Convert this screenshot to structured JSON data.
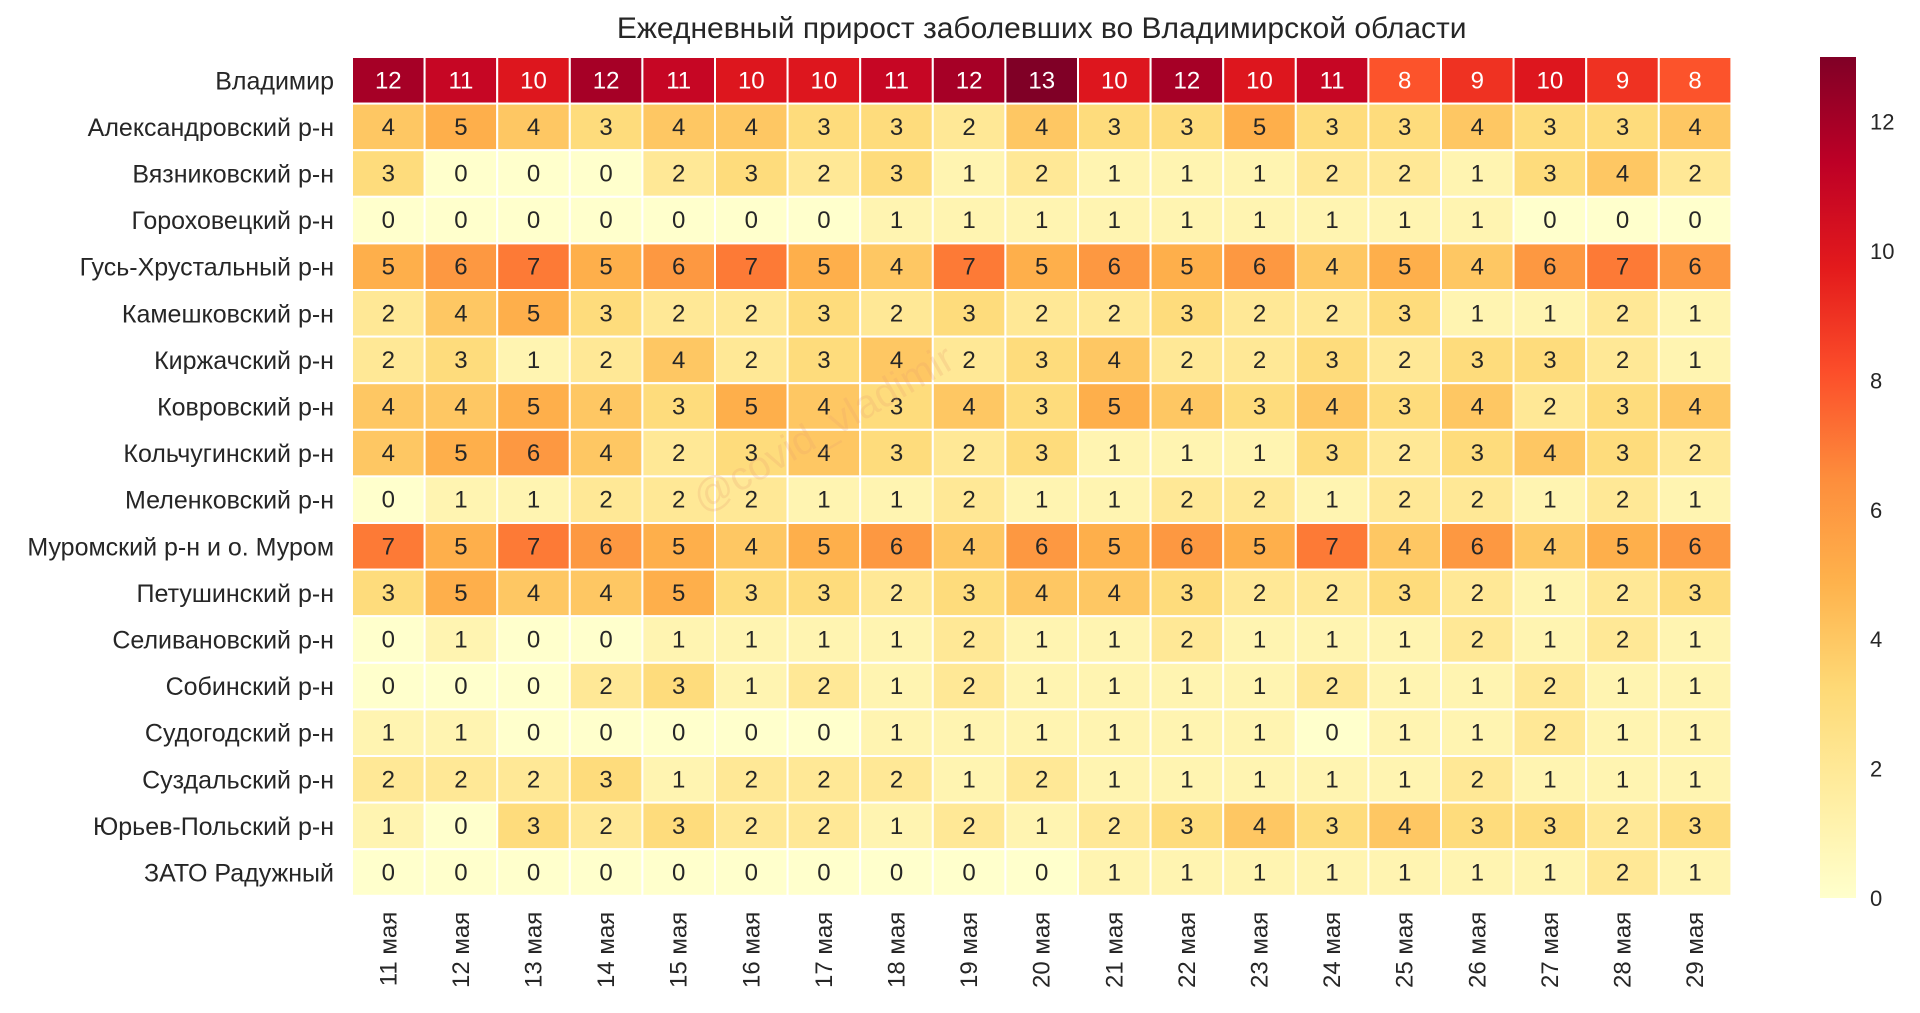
{
  "chart_data": {
    "type": "heatmap",
    "title": "Ежедневный прирост заболевших во Владимирской области",
    "rows": [
      "Владимир",
      "Александровский р-н",
      "Вязниковский р-н",
      "Гороховецкий р-н",
      "Гусь-Хрустальный р-н",
      "Камешковский р-н",
      "Киржачский р-н",
      "Ковровский р-н",
      "Кольчугинский р-н",
      "Меленковский р-н",
      "Муромский р-н и о. Муром",
      "Петушинский р-н",
      "Селивановский р-н",
      "Собинский р-н",
      "Судогодский р-н",
      "Суздальский р-н",
      "Юрьев-Польский р-н",
      "ЗАТО Радужный"
    ],
    "columns": [
      "11 мая",
      "12 мая",
      "13 мая",
      "14 мая",
      "15 мая",
      "16 мая",
      "17 мая",
      "18 мая",
      "19 мая",
      "20 мая",
      "21 мая",
      "22 мая",
      "23 мая",
      "24 мая",
      "25 мая",
      "26 мая",
      "27 мая",
      "28 мая",
      "29 мая"
    ],
    "values": [
      [
        12,
        11,
        10,
        12,
        11,
        10,
        10,
        11,
        12,
        13,
        10,
        12,
        10,
        11,
        8,
        9,
        10,
        9,
        8
      ],
      [
        4,
        5,
        4,
        3,
        4,
        4,
        3,
        3,
        2,
        4,
        3,
        3,
        5,
        3,
        3,
        4,
        3,
        3,
        4
      ],
      [
        3,
        0,
        0,
        0,
        2,
        3,
        2,
        3,
        1,
        2,
        1,
        1,
        1,
        2,
        2,
        1,
        3,
        4,
        2
      ],
      [
        0,
        0,
        0,
        0,
        0,
        0,
        0,
        1,
        1,
        1,
        1,
        1,
        1,
        1,
        1,
        1,
        0,
        0,
        0
      ],
      [
        5,
        6,
        7,
        5,
        6,
        7,
        5,
        4,
        7,
        5,
        6,
        5,
        6,
        4,
        5,
        4,
        6,
        7,
        6
      ],
      [
        2,
        4,
        5,
        3,
        2,
        2,
        3,
        2,
        3,
        2,
        2,
        3,
        2,
        2,
        3,
        1,
        1,
        2,
        1
      ],
      [
        2,
        3,
        1,
        2,
        4,
        2,
        3,
        4,
        2,
        3,
        4,
        2,
        2,
        3,
        2,
        3,
        3,
        2,
        1
      ],
      [
        4,
        4,
        5,
        4,
        3,
        5,
        4,
        3,
        4,
        3,
        5,
        4,
        3,
        4,
        3,
        4,
        2,
        3,
        4
      ],
      [
        4,
        5,
        6,
        4,
        2,
        3,
        4,
        3,
        2,
        3,
        1,
        1,
        1,
        3,
        2,
        3,
        4,
        3,
        2
      ],
      [
        0,
        1,
        1,
        2,
        2,
        2,
        1,
        1,
        2,
        1,
        1,
        2,
        2,
        1,
        2,
        2,
        1,
        2,
        1
      ],
      [
        7,
        5,
        7,
        6,
        5,
        4,
        5,
        6,
        4,
        6,
        5,
        6,
        5,
        7,
        4,
        6,
        4,
        5,
        6
      ],
      [
        3,
        5,
        4,
        4,
        5,
        3,
        3,
        2,
        3,
        4,
        4,
        3,
        2,
        2,
        3,
        2,
        1,
        2,
        3
      ],
      [
        0,
        1,
        0,
        0,
        1,
        1,
        1,
        1,
        2,
        1,
        1,
        2,
        1,
        1,
        1,
        2,
        1,
        2,
        1
      ],
      [
        0,
        0,
        0,
        2,
        3,
        1,
        2,
        1,
        2,
        1,
        1,
        1,
        1,
        2,
        1,
        1,
        2,
        1,
        1
      ],
      [
        1,
        1,
        0,
        0,
        0,
        0,
        0,
        1,
        1,
        1,
        1,
        1,
        1,
        0,
        1,
        1,
        2,
        1,
        1
      ],
      [
        2,
        2,
        2,
        3,
        1,
        2,
        2,
        2,
        1,
        2,
        1,
        1,
        1,
        1,
        1,
        2,
        1,
        1,
        1
      ],
      [
        1,
        0,
        3,
        2,
        3,
        2,
        2,
        1,
        2,
        1,
        2,
        3,
        4,
        3,
        4,
        3,
        3,
        2,
        3
      ],
      [
        0,
        0,
        0,
        0,
        0,
        0,
        0,
        0,
        0,
        0,
        1,
        1,
        1,
        1,
        1,
        1,
        1,
        2,
        1
      ]
    ],
    "colorbar": {
      "min": 0,
      "max": 13,
      "ticks": [
        "0",
        "2",
        "4",
        "6",
        "8",
        "10",
        "12"
      ]
    },
    "colormap": [
      "#ffffcc",
      "#ffeda0",
      "#fed976",
      "#feb24c",
      "#fd8d3c",
      "#fc4e2a",
      "#e31a1c",
      "#bd0026",
      "#800026"
    ],
    "watermark": "@covid_vladimir"
  }
}
